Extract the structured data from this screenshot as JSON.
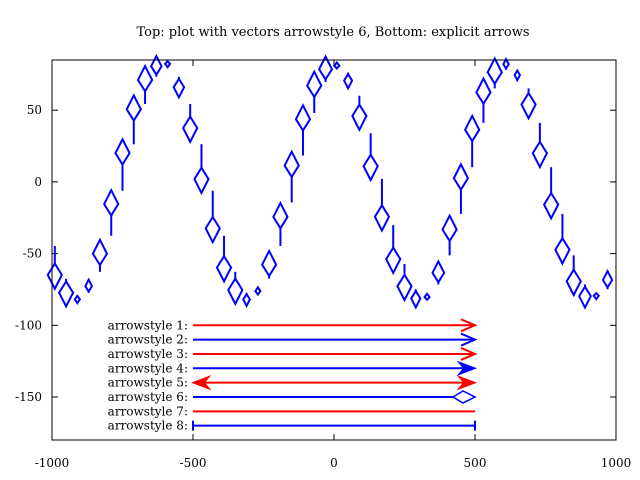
{
  "chart_data": {
    "type": "line",
    "title": "Top: plot with vectors arrowstyle 6, Bottom: explicit arrows",
    "xlim": [
      -1000,
      1000
    ],
    "ylim": [
      -180,
      85
    ],
    "x_ticks": [
      "-1000",
      "-500",
      "0",
      "500",
      "1000"
    ],
    "y_ticks": [
      "50",
      "0",
      "-50",
      "-100",
      "-150"
    ],
    "x_tick_values": [
      -1000,
      -500,
      0,
      500,
      1000
    ],
    "y_tick_values": [
      50,
      0,
      -50,
      -100,
      -150
    ],
    "grid": false,
    "vectors": {
      "style": "arrowstyle 6",
      "color": "#0000ff",
      "x_start": -990,
      "x_step": 40,
      "count": 50,
      "amplitude": 80,
      "period": 610,
      "phase_x": -590
    },
    "arrow_samples": {
      "x_start": -500,
      "x_end": 500,
      "items": [
        {
          "label": "arrowstyle 1:",
          "y": -100,
          "color": "#ff0000",
          "head": "open",
          "heads": "end"
        },
        {
          "label": "arrowstyle 2:",
          "y": -110,
          "color": "#0000ff",
          "head": "open",
          "heads": "end"
        },
        {
          "label": "arrowstyle 3:",
          "y": -120,
          "color": "#ff0000",
          "head": "open",
          "heads": "end"
        },
        {
          "label": "arrowstyle 4:",
          "y": -130,
          "color": "#0000ff",
          "head": "filled",
          "heads": "end"
        },
        {
          "label": "arrowstyle 5:",
          "y": -140,
          "color": "#ff0000",
          "head": "filled",
          "heads": "both"
        },
        {
          "label": "arrowstyle 6:",
          "y": -150,
          "color": "#0000ff",
          "head": "hollow",
          "heads": "end"
        },
        {
          "label": "arrowstyle 7:",
          "y": -160,
          "color": "#ff0000",
          "head": "none",
          "heads": "none"
        },
        {
          "label": "arrowstyle 8:",
          "y": -170,
          "color": "#0000ff",
          "head": "bar",
          "heads": "both"
        }
      ]
    }
  }
}
